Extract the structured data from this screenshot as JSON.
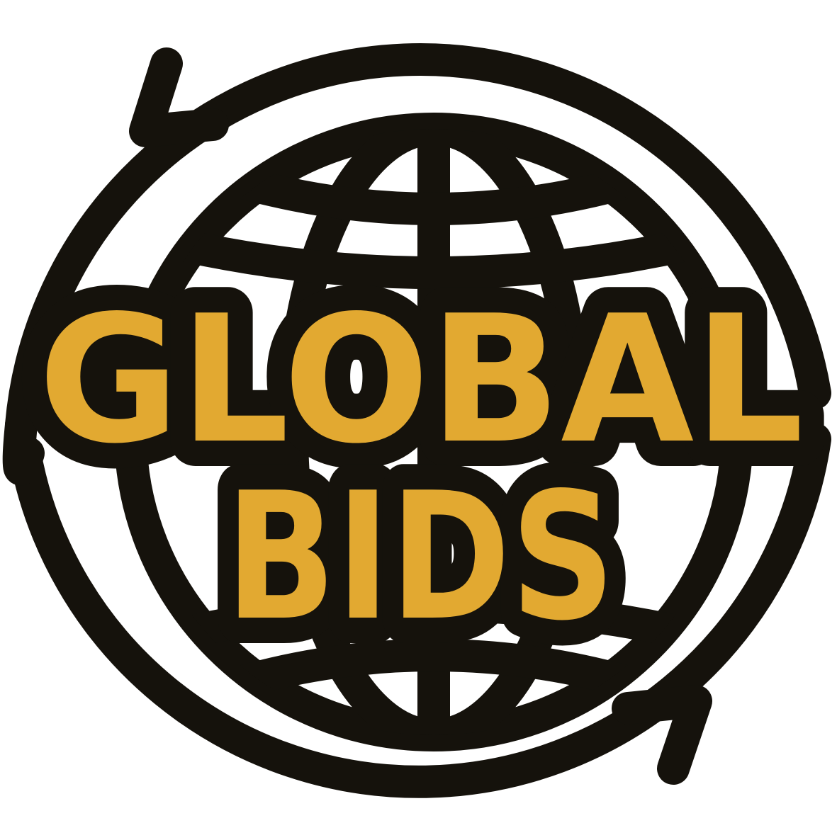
{
  "logo": {
    "line1": "GLOBAL",
    "line2": "BIDS"
  },
  "colors": {
    "ink": "#15120c",
    "gold": "#e2a931",
    "background": "#ffffff"
  },
  "icons": [
    "globe-icon",
    "refresh-arrows-icon"
  ]
}
